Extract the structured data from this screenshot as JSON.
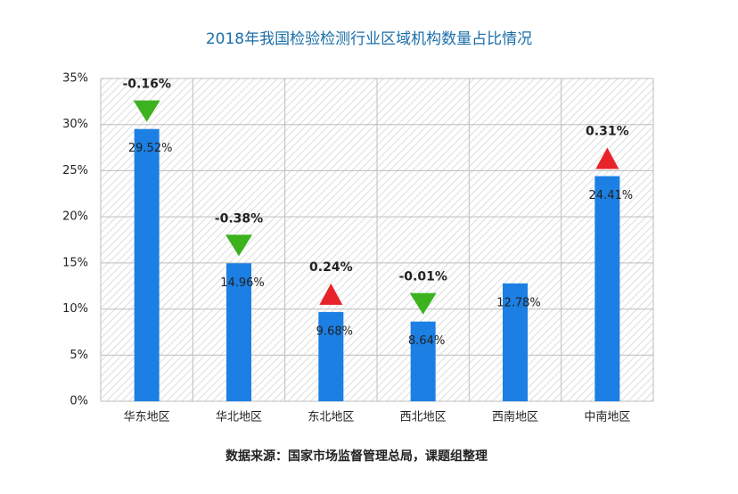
{
  "chart_data": {
    "type": "bar",
    "title": "2018年我国检验检测行业区域机构数量占比情况",
    "categories": [
      "华东地区",
      "华北地区",
      "东北地区",
      "西北地区",
      "西南地区",
      "中南地区"
    ],
    "values": [
      29.52,
      14.96,
      9.68,
      8.64,
      12.78,
      24.41
    ],
    "value_labels": [
      "29.52%",
      "14.96%",
      "9.68%",
      "8.64%",
      "12.78%",
      "24.41%"
    ],
    "changes": [
      -0.16,
      -0.38,
      0.24,
      -0.01,
      null,
      0.31
    ],
    "change_labels": [
      "-0.16%",
      "-0.38%",
      "0.24%",
      "-0.01%",
      null,
      "0.31%"
    ],
    "color": "#1b7fe3",
    "up_color": "#e8232a",
    "down_color": "#3cb21f",
    "ylim": [
      0,
      35
    ],
    "yticks": [
      {
        "value": 0,
        "label": "0%"
      },
      {
        "value": 5,
        "label": "5%"
      },
      {
        "value": 10,
        "label": "10%"
      },
      {
        "value": 15,
        "label": "15%"
      },
      {
        "value": 20,
        "label": "20%"
      },
      {
        "value": 25,
        "label": "25%"
      },
      {
        "value": 30,
        "label": "30%"
      },
      {
        "value": 35,
        "label": "35%"
      }
    ],
    "grid": true,
    "source": "数据来源：国家市场监督管理总局，课题组整理"
  }
}
